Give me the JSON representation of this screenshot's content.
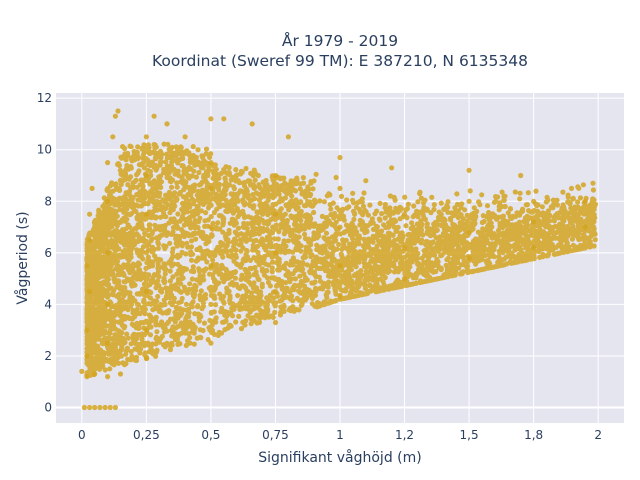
{
  "chart_data": {
    "type": "scatter",
    "title": [
      "År 1979 - 2019",
      "Koordinat (Sweref 99 TM): E 387210, N 6135348"
    ],
    "xlabel": "Signifikant våghöjd (m)",
    "ylabel": "Vågperiod (s)",
    "xlim": [
      -0.1,
      2.1
    ],
    "ylim": [
      -0.6,
      12.2
    ],
    "x_ticks": [
      0,
      0.25,
      0.5,
      0.75,
      1,
      1.25,
      1.5,
      1.75,
      2
    ],
    "x_tick_labels": [
      "0",
      "0,25",
      "0,5",
      "0,75",
      "1",
      "1,2",
      "1,5",
      "1,8",
      "2"
    ],
    "y_ticks": [
      0,
      2,
      4,
      6,
      8,
      10,
      12
    ],
    "y_tick_labels": [
      "0",
      "2",
      "4",
      "6",
      "8",
      "10",
      "12"
    ],
    "grid": true,
    "marker_color": "#d4a520",
    "plot_bgcolor": "#e5e5f0",
    "series": [
      {
        "points": [
          [
            0.01,
            0
          ],
          [
            0.03,
            0
          ],
          [
            0.05,
            0
          ],
          [
            0.07,
            0
          ],
          [
            0.09,
            0
          ],
          [
            0.11,
            0
          ],
          [
            0.13,
            0
          ],
          [
            0.0,
            1.4
          ],
          [
            0.02,
            1.2
          ],
          [
            0.05,
            1.3
          ],
          [
            0.1,
            1.2
          ],
          [
            0.15,
            1.3
          ],
          [
            0.02,
            2.0
          ],
          [
            0.02,
            3.0
          ],
          [
            0.03,
            4.5
          ],
          [
            0.02,
            5.5
          ],
          [
            0.03,
            6.5
          ],
          [
            0.03,
            7.5
          ],
          [
            0.04,
            8.5
          ],
          [
            0.1,
            2.5
          ],
          [
            0.1,
            4.0
          ],
          [
            0.1,
            6.0
          ],
          [
            0.1,
            8.0
          ],
          [
            0.1,
            9.5
          ],
          [
            0.12,
            10.5
          ],
          [
            0.13,
            11.3
          ],
          [
            0.14,
            11.5
          ],
          [
            0.25,
            1.9
          ],
          [
            0.25,
            3.0
          ],
          [
            0.25,
            4.5
          ],
          [
            0.25,
            6.0
          ],
          [
            0.25,
            7.5
          ],
          [
            0.25,
            9.0
          ],
          [
            0.25,
            10.5
          ],
          [
            0.28,
            11.3
          ],
          [
            0.33,
            11.0
          ],
          [
            0.4,
            10.5
          ],
          [
            0.45,
            10.0
          ],
          [
            0.5,
            11.2
          ],
          [
            0.55,
            11.2
          ],
          [
            0.66,
            11.0
          ],
          [
            0.5,
            2.5
          ],
          [
            0.5,
            4.0
          ],
          [
            0.5,
            5.5
          ],
          [
            0.5,
            7.0
          ],
          [
            0.5,
            8.5
          ],
          [
            0.5,
            9.5
          ],
          [
            0.75,
            3.3
          ],
          [
            0.75,
            4.5
          ],
          [
            0.75,
            6.0
          ],
          [
            0.75,
            7.5
          ],
          [
            0.75,
            9.0
          ],
          [
            0.8,
            10.5
          ],
          [
            1.0,
            4.3
          ],
          [
            1.0,
            5.5
          ],
          [
            1.0,
            7.0
          ],
          [
            1.0,
            8.5
          ],
          [
            1.0,
            9.7
          ],
          [
            1.25,
            5.0
          ],
          [
            1.25,
            6.2
          ],
          [
            1.25,
            7.5
          ],
          [
            1.2,
            9.3
          ],
          [
            1.5,
            5.8
          ],
          [
            1.5,
            6.8
          ],
          [
            1.5,
            8.0
          ],
          [
            1.5,
            9.2
          ],
          [
            1.75,
            6.2
          ],
          [
            1.75,
            7.2
          ],
          [
            1.75,
            8.0
          ],
          [
            1.7,
            9.0
          ],
          [
            1.95,
            7.0
          ],
          [
            1.95,
            8.0
          ],
          [
            1.98,
            8.7
          ]
        ]
      }
    ]
  }
}
